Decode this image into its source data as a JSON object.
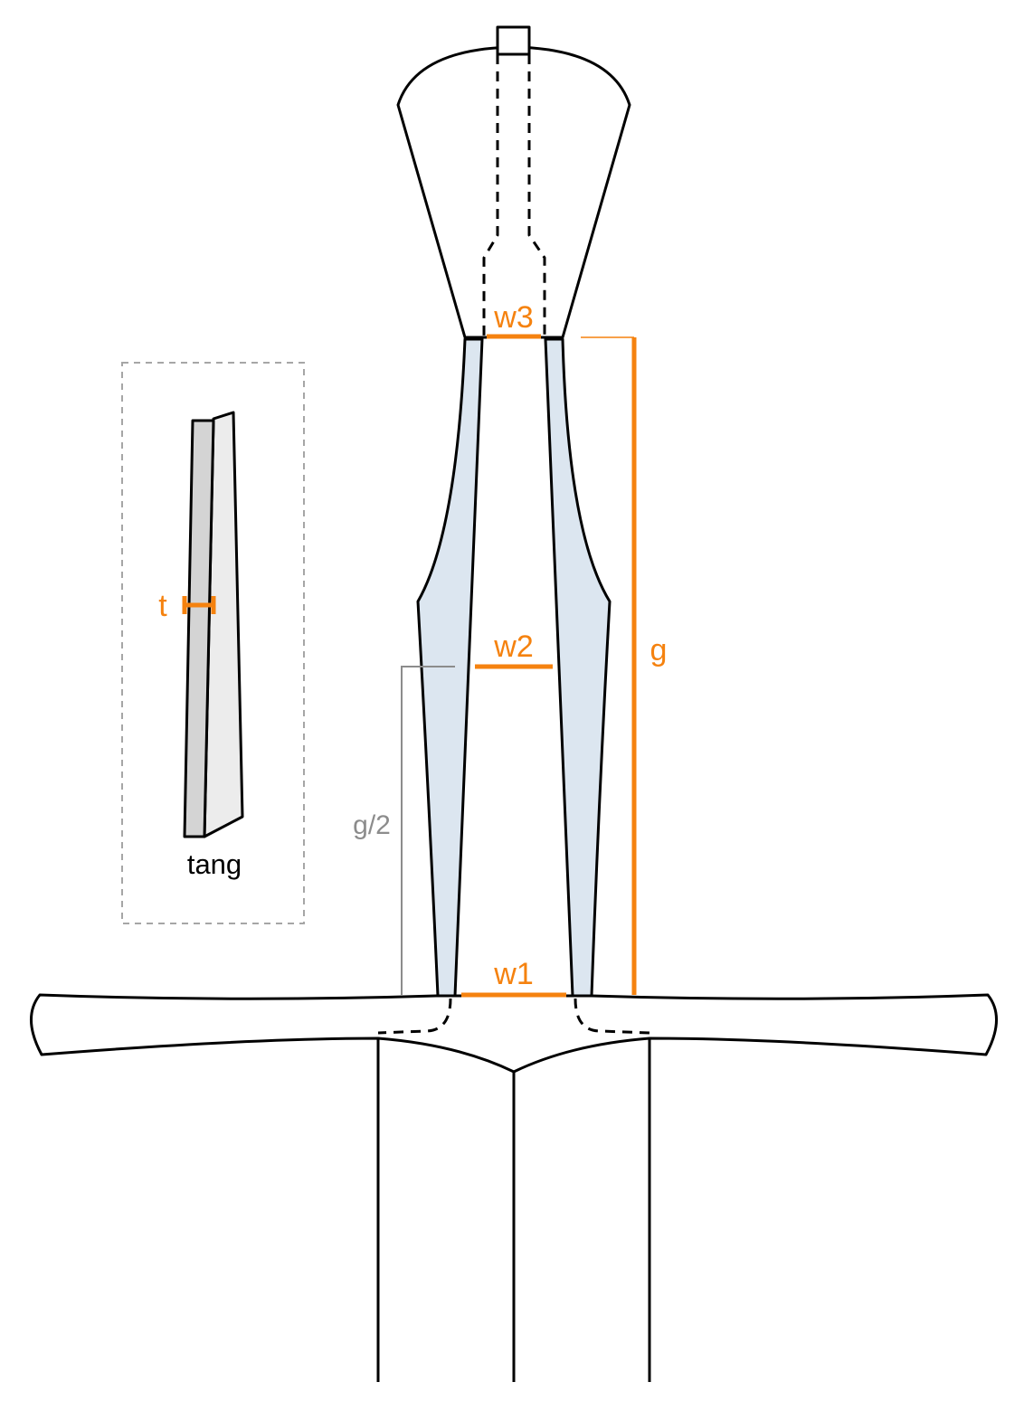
{
  "labels": {
    "w1": "w1",
    "w2": "w2",
    "w3": "w3",
    "g": "g",
    "g_half": "g/2",
    "t": "t",
    "tang": "tang"
  },
  "colors": {
    "dimension": "#f5820f",
    "guide": "#8c8c8c",
    "handle_fill": "#dce6f0",
    "tang_dark": "#d4d4d4",
    "tang_light": "#ececec",
    "outline": "#000000"
  }
}
